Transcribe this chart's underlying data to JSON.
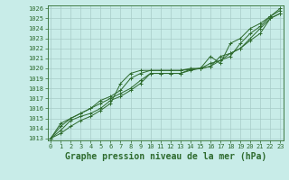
{
  "title": "Graphe pression niveau de la mer (hPa)",
  "bg_color": "#c8ece8",
  "grid_color": "#a8ccc8",
  "line_color": "#2d6a2d",
  "marker_color": "#2d6a2d",
  "xlim": [
    -0.3,
    23.3
  ],
  "ylim": [
    1012.8,
    1026.3
  ],
  "xticks": [
    0,
    1,
    2,
    3,
    4,
    5,
    6,
    7,
    8,
    9,
    10,
    11,
    12,
    13,
    14,
    15,
    16,
    17,
    18,
    19,
    20,
    21,
    22,
    23
  ],
  "yticks": [
    1013,
    1014,
    1015,
    1016,
    1017,
    1018,
    1019,
    1020,
    1021,
    1022,
    1023,
    1024,
    1025,
    1026
  ],
  "series": [
    [
      1013.0,
      1013.5,
      1014.2,
      1014.8,
      1015.2,
      1015.8,
      1016.5,
      1018.5,
      1019.5,
      1019.8,
      1019.8,
      1019.8,
      1019.8,
      1019.8,
      1019.9,
      1020.0,
      1021.2,
      1020.5,
      1022.5,
      1023.0,
      1024.0,
      1024.5,
      1025.2,
      1026.0
    ],
    [
      1013.0,
      1013.8,
      1014.8,
      1015.2,
      1015.5,
      1016.0,
      1016.8,
      1017.2,
      1017.8,
      1018.5,
      1019.5,
      1019.5,
      1019.5,
      1019.5,
      1019.9,
      1020.0,
      1020.5,
      1020.8,
      1021.5,
      1022.0,
      1022.8,
      1023.5,
      1025.0,
      1025.5
    ],
    [
      1013.0,
      1014.5,
      1015.0,
      1015.5,
      1016.0,
      1016.5,
      1017.0,
      1017.5,
      1018.0,
      1018.8,
      1019.5,
      1019.5,
      1019.5,
      1019.5,
      1019.8,
      1020.0,
      1020.2,
      1021.2,
      1021.5,
      1022.0,
      1023.0,
      1024.0,
      1025.0,
      1025.5
    ],
    [
      1013.0,
      1014.2,
      1015.0,
      1015.5,
      1016.0,
      1016.8,
      1017.2,
      1017.8,
      1019.0,
      1019.5,
      1019.8,
      1019.8,
      1019.8,
      1019.8,
      1020.0,
      1020.0,
      1020.2,
      1020.8,
      1021.2,
      1022.5,
      1023.5,
      1024.2,
      1025.2,
      1025.8
    ]
  ],
  "tick_fontsize": 5,
  "title_fontsize": 7
}
